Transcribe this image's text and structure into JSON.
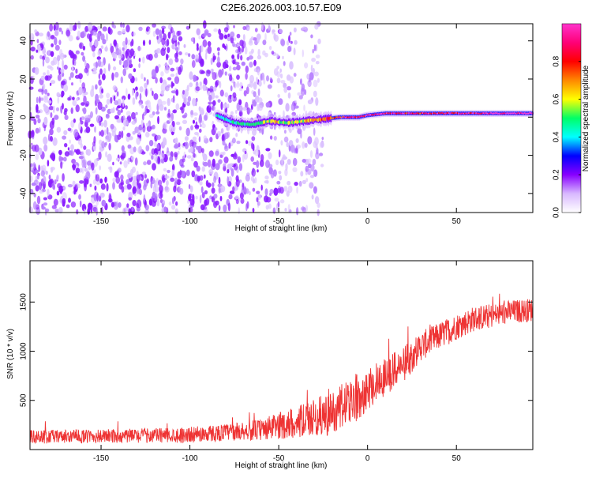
{
  "figure": {
    "title": "C2E6.2026.003.10.57.E09"
  },
  "chart_data": [
    {
      "type": "heatmap",
      "xlabel": "Height of straight line (km)",
      "ylabel": "Frequency (Hz)",
      "xlim": [
        -190,
        93
      ],
      "ylim": [
        -50,
        49
      ],
      "xticks": [
        -150,
        -100,
        -50,
        0,
        50
      ],
      "yticks": [
        -40,
        -20,
        0,
        20,
        40
      ],
      "colorbar": {
        "label": "Normalized spectral amplitude",
        "range": [
          0,
          1
        ],
        "ticks": [
          "0.0",
          "0.2",
          "0.4",
          "0.6",
          "0.8"
        ],
        "colors": [
          "#ffffff",
          "#d8b8ff",
          "#8800ff",
          "#0000ff",
          "#00ffff",
          "#00ff66",
          "#ffff00",
          "#ff8800",
          "#ff0000",
          "#ff0077",
          "#ff33cc"
        ]
      },
      "ridge": {
        "x": [
          -85,
          -75,
          -65,
          -55,
          -45,
          -35,
          -25,
          -15,
          -5,
          0,
          10,
          25,
          50,
          75,
          93
        ],
        "y": [
          1,
          -3,
          -4,
          -2,
          -3,
          -2,
          -1,
          0,
          0,
          1,
          2,
          2,
          2,
          2,
          2
        ],
        "amplitude": [
          0.35,
          0.4,
          0.45,
          0.55,
          0.5,
          0.55,
          0.7,
          0.8,
          0.85,
          0.9,
          0.85,
          0.8,
          0.85,
          0.95,
          1.0
        ]
      },
      "noise_extent_x": [
        -190,
        -35
      ],
      "noise_amplitude_range": [
        0.05,
        0.35
      ]
    },
    {
      "type": "line",
      "xlabel": "Height of straight line (km)",
      "ylabel": "SNR (10 * v/v)",
      "xlim": [
        -190,
        93
      ],
      "ylim": [
        0,
        1920
      ],
      "xticks": [
        -150,
        -100,
        -50,
        0,
        50
      ],
      "yticks": [
        500,
        1000,
        1500
      ],
      "color": "#ee3333",
      "series": [
        {
          "name": "SNR",
          "x": [
            -190,
            -150,
            -100,
            -75,
            -60,
            -50,
            -40,
            -30,
            -25,
            -20,
            -15,
            -10,
            -5,
            0,
            10,
            20,
            25,
            30,
            40,
            50,
            60,
            70,
            80,
            93
          ],
          "y": [
            130,
            135,
            150,
            180,
            200,
            240,
            280,
            320,
            350,
            360,
            430,
            480,
            550,
            620,
            750,
            860,
            950,
            1050,
            1150,
            1250,
            1330,
            1360,
            1400,
            1420
          ],
          "spread": [
            140,
            140,
            160,
            180,
            220,
            280,
            320,
            380,
            420,
            450,
            480,
            500,
            480,
            450,
            400,
            360,
            330,
            300,
            280,
            270,
            260,
            250,
            240,
            240
          ]
        }
      ]
    }
  ]
}
